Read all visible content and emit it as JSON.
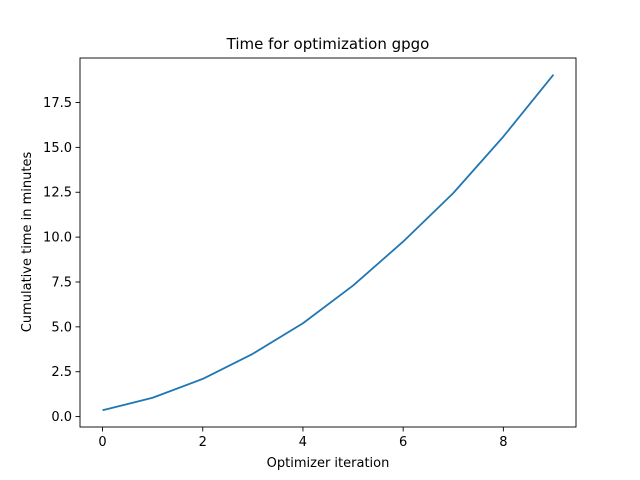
{
  "chart_data": {
    "type": "line",
    "title": "Time for optimization gpgo",
    "xlabel": "Optimizer iteration",
    "ylabel": "Cumulative time in minutes",
    "xlim": [
      -0.45,
      9.45
    ],
    "ylim": [
      -0.58,
      19.98
    ],
    "xticks": [
      0,
      2,
      4,
      6,
      8
    ],
    "xtick_labels": [
      "0",
      "2",
      "4",
      "6",
      "8"
    ],
    "yticks": [
      0,
      2.5,
      5,
      7.5,
      10,
      12.5,
      15,
      17.5
    ],
    "ytick_labels": [
      "0.0",
      "2.5",
      "5.0",
      "7.5",
      "10.0",
      "12.5",
      "15.0",
      "17.5"
    ],
    "grid": false,
    "legend": false,
    "series": [
      {
        "color": "#1f77b4",
        "x": [
          0,
          1,
          2,
          3,
          4,
          5,
          6,
          7,
          8,
          9
        ],
        "y": [
          0.35,
          1.05,
          2.1,
          3.5,
          5.2,
          7.3,
          9.75,
          12.45,
          15.6,
          19.05
        ]
      }
    ]
  }
}
